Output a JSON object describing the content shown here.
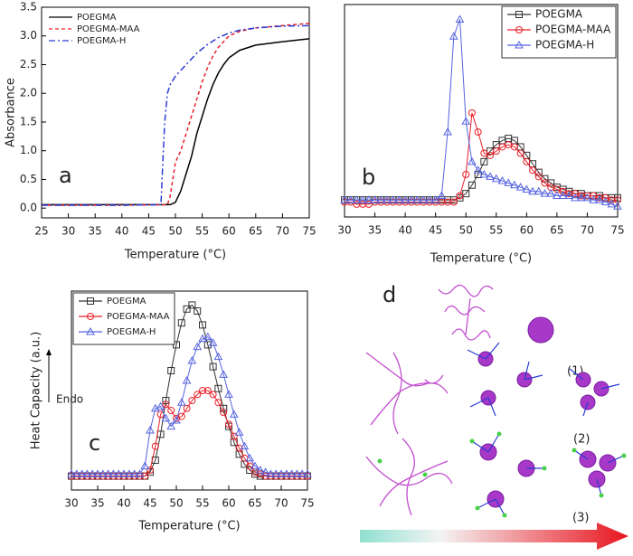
{
  "chart_data": [
    {
      "type": "line",
      "panel_label": "a",
      "x_label": "Temperature (°C)",
      "y_label": "Absorbance",
      "xlim": [
        25,
        75
      ],
      "xticks": [
        25,
        30,
        35,
        40,
        45,
        50,
        55,
        60,
        65,
        70,
        75
      ],
      "ylim": [
        -0.17,
        3.5
      ],
      "yticks": [
        {
          "value": 0,
          "label": "0.0"
        },
        {
          "value": 0.5,
          "label": "0.5"
        },
        {
          "value": 1,
          "label": "1.0"
        },
        {
          "value": 1.5,
          "label": "1.5"
        },
        {
          "value": 2,
          "label": "2.0"
        },
        {
          "value": 2.5,
          "label": "2.5"
        },
        {
          "value": 3,
          "label": "3.0"
        },
        {
          "value": 3.5,
          "label": "3.5"
        }
      ],
      "legend": "upper left",
      "series": [
        {
          "name": "POEGMA",
          "color": "#000000",
          "line_style": "solid",
          "x": [
            25,
            30,
            40,
            49,
            50,
            51,
            52,
            53,
            54,
            55,
            56,
            57,
            58,
            59,
            60,
            62,
            65,
            70,
            75
          ],
          "values": [
            0.06,
            0.06,
            0.06,
            0.06,
            0.1,
            0.3,
            0.6,
            0.9,
            1.3,
            1.6,
            1.9,
            2.15,
            2.35,
            2.5,
            2.62,
            2.75,
            2.84,
            2.9,
            2.95
          ]
        },
        {
          "name": "POEGMA-MAA",
          "color": "#e8202a",
          "line_style": "dashed",
          "x": [
            25,
            30,
            40,
            48.5,
            49,
            50,
            51,
            52,
            53,
            54,
            55,
            56,
            57,
            58,
            60,
            62,
            65,
            70,
            75
          ],
          "values": [
            0.05,
            0.05,
            0.05,
            0.06,
            0.2,
            0.8,
            1.0,
            1.3,
            1.6,
            1.9,
            2.2,
            2.45,
            2.65,
            2.8,
            3.0,
            3.08,
            3.14,
            3.18,
            3.22
          ]
        },
        {
          "name": "POEGMA-H",
          "color": "#2a3bd4",
          "line_style": "dashdot",
          "x": [
            25,
            30,
            40,
            47.3,
            47.5,
            48,
            48.5,
            49,
            50,
            52,
            54,
            56,
            58,
            60,
            62,
            65,
            70,
            75
          ],
          "values": [
            0.05,
            0.05,
            0.05,
            0.06,
            0.5,
            1.5,
            2.0,
            2.15,
            2.3,
            2.5,
            2.7,
            2.85,
            2.97,
            3.05,
            3.1,
            3.14,
            3.17,
            3.18
          ]
        }
      ]
    },
    {
      "type": "line",
      "panel_label": "b",
      "x_label": "Temperature (°C)",
      "xlim": [
        30,
        75
      ],
      "xticks": [
        30,
        35,
        40,
        45,
        50,
        55,
        60,
        65,
        70,
        75
      ],
      "ylim": [
        0,
        100
      ],
      "legend": "upper right",
      "x": [
        30,
        31,
        32,
        33,
        34,
        35,
        36,
        37,
        38,
        39,
        40,
        41,
        42,
        43,
        44,
        45,
        46,
        47,
        48,
        49,
        50,
        51,
        52,
        53,
        54,
        55,
        56,
        57,
        58,
        59,
        60,
        61,
        62,
        63,
        64,
        65,
        66,
        67,
        68,
        69,
        70,
        71,
        72,
        73,
        74,
        75
      ],
      "series": [
        {
          "name": "POEGMA",
          "color": "#333333",
          "marker": "square",
          "values": [
            8,
            8,
            8,
            8,
            8,
            8,
            8,
            8,
            8,
            8,
            8,
            8,
            8,
            8,
            8,
            8,
            8,
            8,
            8,
            9,
            11,
            15,
            20,
            26,
            31,
            34,
            36,
            37,
            36,
            33,
            29,
            25,
            21,
            18,
            16,
            14,
            13,
            12,
            11,
            11,
            10,
            10,
            10,
            9,
            9,
            9
          ]
        },
        {
          "name": "POEGMA-MAA",
          "color": "#e8202a",
          "marker": "circle",
          "values": [
            7,
            7,
            6,
            6,
            6,
            7,
            7,
            7,
            7,
            7,
            7,
            7,
            7,
            7,
            7,
            7,
            7,
            7,
            7,
            10,
            20,
            49,
            40,
            30,
            29,
            31,
            33,
            34,
            33,
            30,
            26,
            22,
            19,
            16,
            14,
            13,
            12,
            11,
            11,
            10,
            10,
            10,
            9,
            9,
            8,
            8
          ]
        },
        {
          "name": "POEGMA-H",
          "color": "#5563e0",
          "marker": "triangle",
          "values": [
            8,
            8,
            8,
            8,
            8,
            8,
            8,
            8,
            8,
            8,
            8,
            8,
            8,
            8,
            8,
            8,
            10,
            40,
            85,
            93,
            45,
            26,
            22,
            20,
            19,
            18,
            17,
            16,
            15,
            14,
            13,
            12,
            12,
            11,
            11,
            10,
            10,
            10,
            9,
            9,
            9,
            8,
            8,
            7,
            6,
            5
          ]
        }
      ]
    },
    {
      "type": "line",
      "panel_label": "c",
      "x_label": "Temperature (°C)",
      "y_label": "Heat Capacity (a.u.)",
      "annotation": "Endo",
      "xlim": [
        30,
        75
      ],
      "xticks": [
        30,
        35,
        40,
        45,
        50,
        55,
        60,
        65,
        70,
        75
      ],
      "ylim": [
        0,
        100
      ],
      "legend": "upper left",
      "x": [
        30,
        31,
        32,
        33,
        34,
        35,
        36,
        37,
        38,
        39,
        40,
        41,
        42,
        43,
        44,
        45,
        46,
        47,
        48,
        49,
        50,
        51,
        52,
        53,
        54,
        55,
        56,
        57,
        58,
        59,
        60,
        61,
        62,
        63,
        64,
        65,
        66,
        67,
        68,
        69,
        70,
        71,
        72,
        73,
        74,
        75
      ],
      "series": [
        {
          "name": "POEGMA",
          "color": "#333333",
          "marker": "square",
          "values": [
            7,
            7,
            7,
            7,
            7,
            7,
            7,
            7,
            7,
            7,
            7,
            7,
            7,
            7,
            7,
            9,
            15,
            28,
            45,
            60,
            73,
            84,
            91,
            93,
            90,
            83,
            73,
            62,
            51,
            41,
            32,
            24,
            18,
            13,
            10,
            8,
            7,
            7,
            7,
            7,
            7,
            7,
            7,
            7,
            7,
            7
          ]
        },
        {
          "name": "POEGMA-MAA",
          "color": "#e8202a",
          "marker": "circle",
          "values": [
            7,
            7,
            7,
            7,
            7,
            7,
            7,
            7,
            7,
            7,
            7,
            7,
            7,
            7,
            7,
            10,
            22,
            38,
            43,
            40,
            36,
            37,
            41,
            45,
            48,
            50,
            50,
            48,
            44,
            39,
            33,
            27,
            21,
            16,
            12,
            9,
            8,
            7,
            7,
            7,
            7,
            7,
            7,
            7,
            7,
            7
          ]
        },
        {
          "name": "POEGMA-H",
          "color": "#5563e0",
          "marker": "triangle",
          "values": [
            8,
            8,
            8,
            8,
            8,
            8,
            8,
            8,
            8,
            8,
            8,
            8,
            8,
            8,
            12,
            30,
            41,
            42,
            36,
            32,
            35,
            44,
            55,
            65,
            72,
            76,
            77,
            74,
            67,
            58,
            48,
            38,
            29,
            22,
            16,
            12,
            10,
            9,
            8,
            8,
            8,
            8,
            8,
            8,
            8,
            8
          ]
        }
      ]
    }
  ],
  "diagram": {
    "label": "d",
    "rows": [
      "(1)",
      "(2)",
      "(3)"
    ]
  }
}
